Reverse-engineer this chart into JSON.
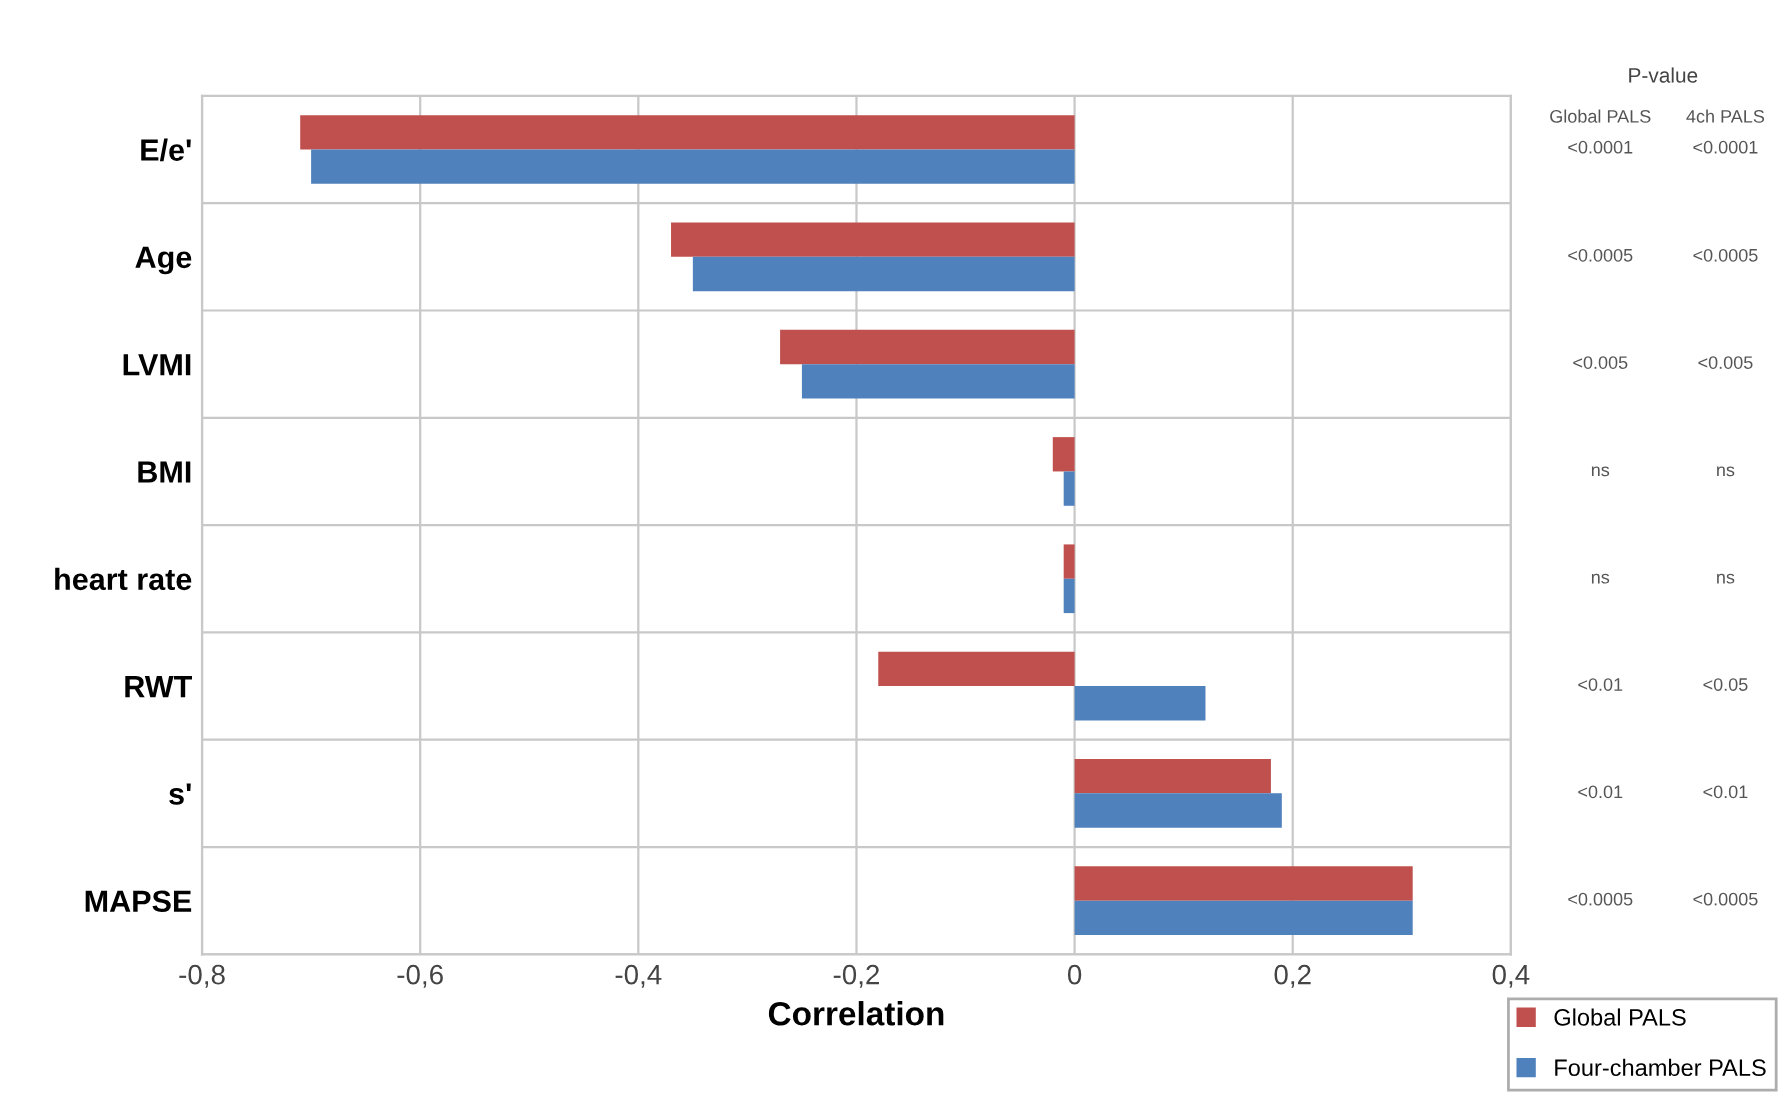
{
  "chart_data": {
    "type": "bar",
    "orientation": "horizontal",
    "xlabel": "Correlation",
    "categories": [
      "E/e'",
      "Age",
      "LVMI",
      "BMI",
      "heart rate",
      "RWT",
      "s'",
      "MAPSE"
    ],
    "series": [
      {
        "name": "Global PALS",
        "color": "#c0504d",
        "values": [
          -0.71,
          -0.37,
          -0.27,
          -0.02,
          -0.01,
          -0.18,
          0.18,
          0.31
        ]
      },
      {
        "name": "Four-chamber PALS",
        "color": "#4f81bd",
        "values": [
          -0.7,
          -0.35,
          -0.25,
          -0.01,
          -0.01,
          0.12,
          0.19,
          0.31
        ]
      }
    ],
    "xlim": [
      -0.8,
      0.4
    ],
    "xticks": [
      {
        "value": -0.8,
        "label": "-0,8"
      },
      {
        "value": -0.6,
        "label": "-0,6"
      },
      {
        "value": -0.4,
        "label": "-0,4"
      },
      {
        "value": -0.2,
        "label": "-0,2"
      },
      0,
      {
        "value": 0.2,
        "label": "0,2"
      },
      {
        "value": 0.4,
        "label": "0,4"
      }
    ],
    "grid": true,
    "legend": "bottom right",
    "annotations": [
      "P-value",
      "Global PALS",
      "4ch PALS",
      "<0.0001",
      "<0.0001",
      "<0.0005",
      "<0.0005",
      "<0.005",
      "<0.005",
      "ns",
      "ns",
      "ns",
      "ns",
      "<0.01",
      "<0.05",
      "<0.01",
      "<0.01",
      "<0.0005",
      "<0.0005"
    ]
  }
}
